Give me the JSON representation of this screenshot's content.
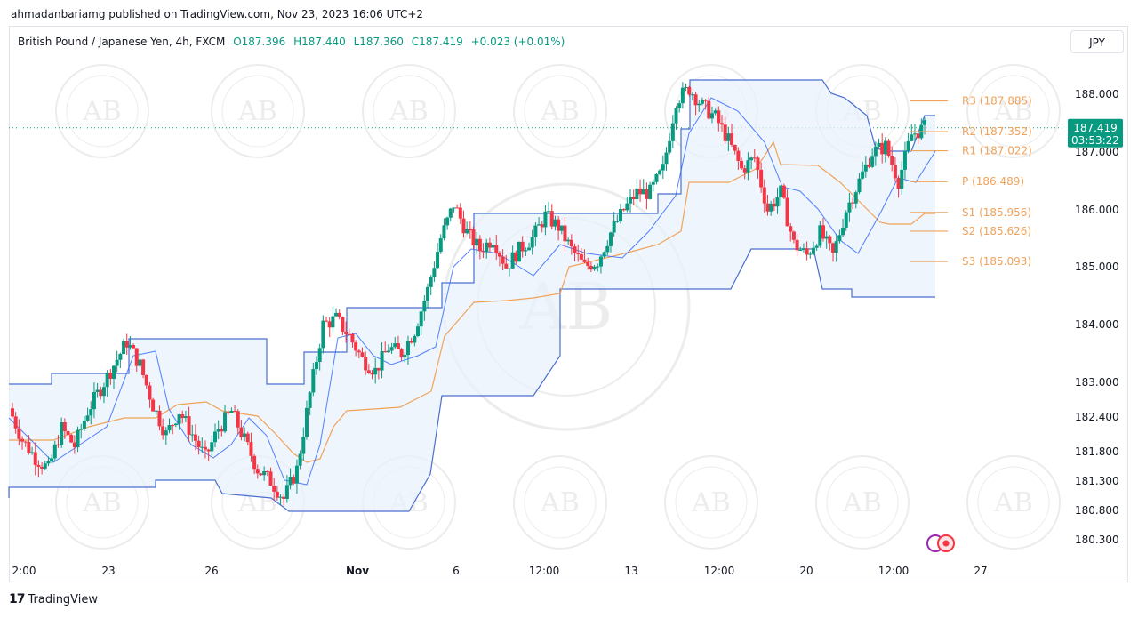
{
  "header": {
    "publisher_line": "ahmadanbariamg published on TradingView.com, Nov 23, 2023 16:06 UTC+2"
  },
  "legend": {
    "symbol": "British Pound / Japanese Yen, 4h, FXCM",
    "open": "O187.396",
    "high": "H187.440",
    "low": "L187.360",
    "close": "C187.419",
    "change": "+0.023 (+0.01%)"
  },
  "currency_button": "JPY",
  "footer": {
    "brand": "TradingView",
    "logo_text": "17"
  },
  "watermark": {
    "text_top": "ARABIAN BUSINESS ACADEMY",
    "text_center": "AB"
  },
  "colors": {
    "up": "#089981",
    "down": "#f23645",
    "channel": "#4a6fd1",
    "channel_fill": "#e8f1fb",
    "baseline": "#f0a35a",
    "pivot": "#f0a35a",
    "price_label": "#089981"
  },
  "chart_data": {
    "type": "candlestick",
    "title": "British Pound / Japanese Yen, 4h, FXCM",
    "y_axis": {
      "ticks": [
        "188.000",
        "187.000",
        "186.000",
        "185.000",
        "184.000",
        "183.000",
        "182.400",
        "181.800",
        "181.300",
        "180.800",
        "180.300"
      ],
      "tick_values": [
        188.0,
        187.0,
        186.0,
        185.0,
        184.0,
        183.0,
        182.4,
        181.8,
        181.3,
        180.8,
        180.3
      ]
    },
    "x_axis": {
      "ticks": [
        "2:00",
        "23",
        "26",
        "Nov",
        "6",
        "12:00",
        "13",
        "12:00",
        "20",
        "12:00",
        "27"
      ]
    },
    "last_price": {
      "value": "187.419",
      "countdown": "03:53:22"
    },
    "pivot_levels": [
      {
        "label": "R3 (187.885)",
        "value": 187.885
      },
      {
        "label": "R2 (187.352)",
        "value": 187.352
      },
      {
        "label": "R1 (187.022)",
        "value": 187.022
      },
      {
        "label": "P (186.489)",
        "value": 186.489
      },
      {
        "label": "S1 (185.956)",
        "value": 185.956
      },
      {
        "label": "S2 (185.626)",
        "value": 185.626
      },
      {
        "label": "S3 (185.093)",
        "value": 185.093
      }
    ],
    "close_path": [
      182.55,
      182.0,
      181.7,
      181.5,
      182.2,
      181.9,
      182.5,
      182.9,
      183.3,
      183.7,
      183.3,
      182.6,
      182.1,
      182.5,
      182.1,
      181.7,
      182.2,
      182.5,
      182.0,
      181.5,
      181.3,
      181.0,
      181.5,
      182.8,
      184.0,
      184.1,
      183.8,
      183.4,
      183.2,
      183.6,
      183.5,
      183.9,
      184.6,
      185.5,
      186.1,
      185.6,
      185.3,
      185.5,
      185.0,
      185.3,
      185.5,
      185.9,
      185.7,
      185.3,
      185.0,
      185.1,
      185.6,
      186.0,
      186.3,
      186.3,
      186.7,
      187.9,
      188.1,
      187.8,
      187.6,
      187.2,
      186.7,
      186.9,
      186.0,
      186.3,
      185.4,
      185.2,
      185.6,
      185.2,
      186.0,
      186.5,
      187.0,
      187.1,
      186.5,
      187.3,
      187.42
    ]
  }
}
